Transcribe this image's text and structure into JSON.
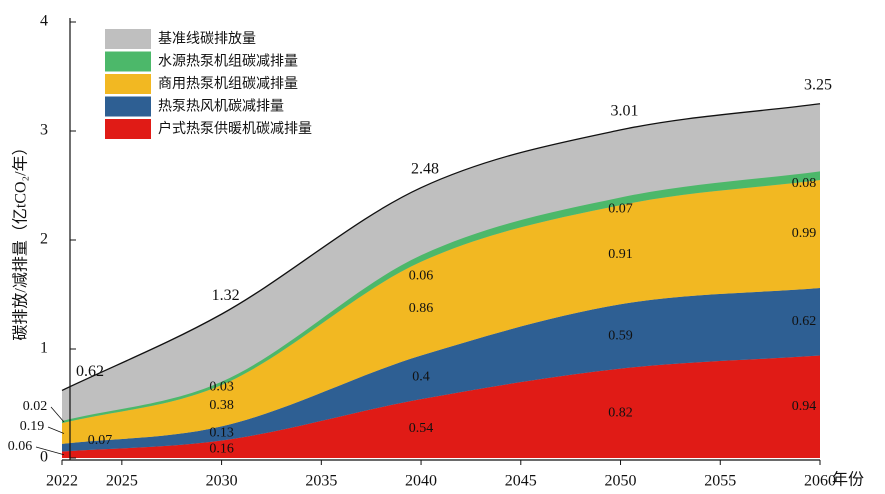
{
  "chart_data": {
    "type": "stacked_area",
    "x": [
      2022,
      2030,
      2040,
      2050,
      2060
    ],
    "xlim": [
      2022,
      2060
    ],
    "xticks": [
      2022,
      2025,
      2030,
      2035,
      2040,
      2045,
      2050,
      2055,
      2060
    ],
    "ylim": [
      0,
      4
    ],
    "yticks": [
      0,
      1,
      2,
      3,
      4
    ],
    "x_label": "年份",
    "y_label": "碳排放/减排量（亿tCO₂/年）",
    "baseline": {
      "name": "基准线碳排放量",
      "color": "#bfbfbf",
      "values": [
        0.62,
        1.32,
        2.48,
        3.01,
        3.25
      ]
    },
    "series": [
      {
        "name": "户式热泵供暖机碳减排量",
        "color": "#e01b16",
        "values": [
          0.06,
          0.16,
          0.54,
          0.82,
          0.94
        ]
      },
      {
        "name": "热泵热风机碳减排量",
        "color": "#2e5f93",
        "values": [
          0.07,
          0.13,
          0.4,
          0.59,
          0.62
        ]
      },
      {
        "name": "商用热泵机组碳减排量",
        "color": "#f2b822",
        "values": [
          0.19,
          0.38,
          0.86,
          0.91,
          0.99
        ]
      },
      {
        "name": "水源热泵机组碳减排量",
        "color": "#4cb86a",
        "values": [
          0.02,
          0.03,
          0.06,
          0.07,
          0.08
        ]
      }
    ]
  }
}
